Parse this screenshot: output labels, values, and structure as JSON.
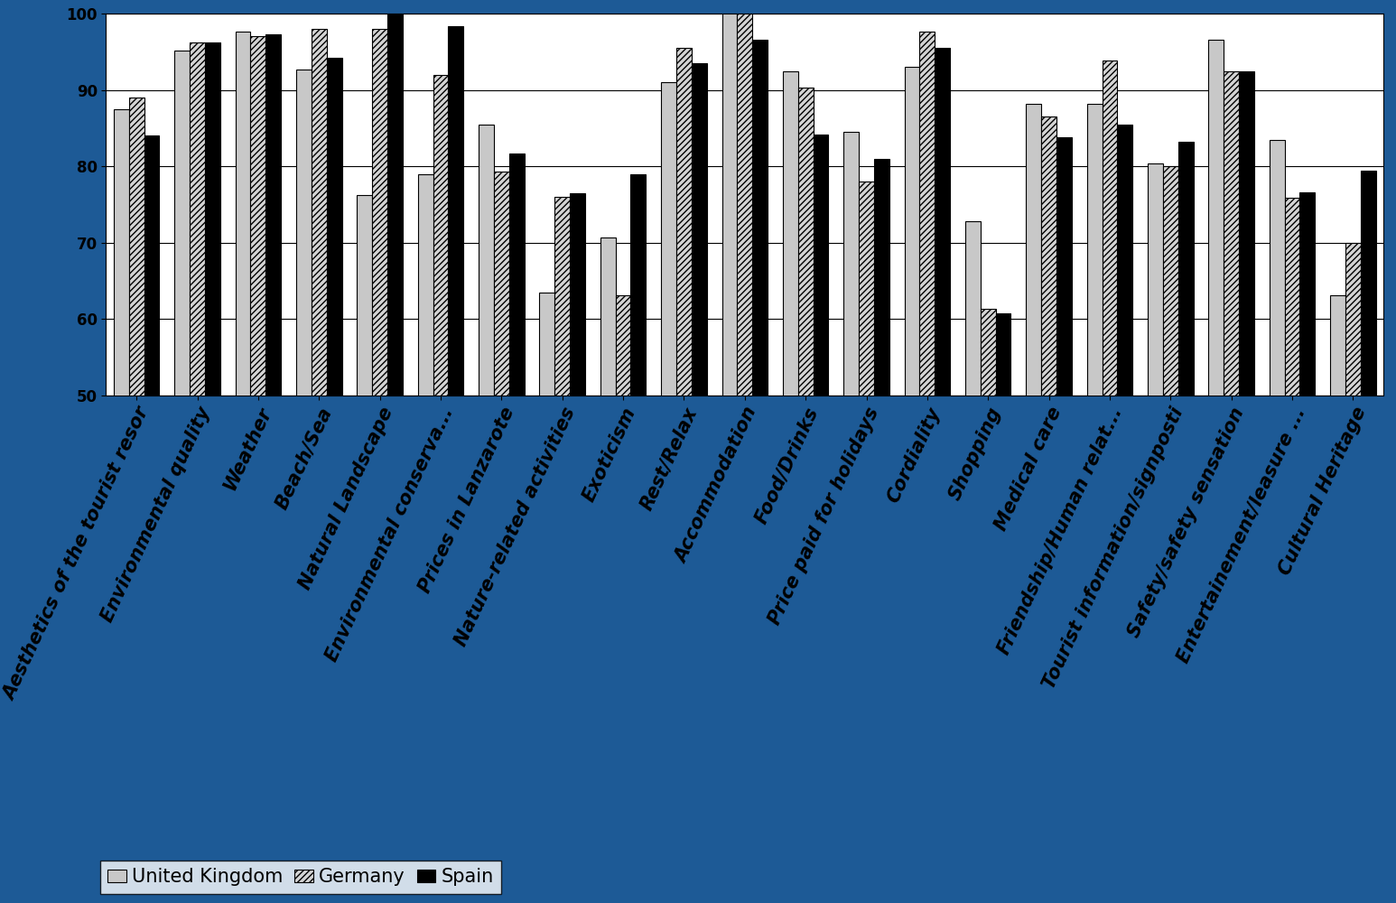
{
  "chart_data": {
    "type": "bar",
    "categories": [
      "Aesthetics of the tourist resor",
      "Environmental quality",
      "Weather",
      "Beach/Sea",
      "Natural Landscape",
      "Environmental conserva...",
      "Prices in Lanzarote",
      "Nature-related activities",
      "Exoticism",
      "Rest/Relax",
      "Accommodation",
      "Food/Drinks",
      "Price paid for holidays",
      "Cordiality",
      "Shopping",
      "Medical care",
      "Friendship/Human relat...",
      "Tourist information/signposti",
      "Safety/safety sensation",
      "Entertainement/leasure ...",
      "Cultural Heritage"
    ],
    "series": [
      {
        "name": "United Kingdom",
        "color": "#c8c8c8",
        "values": [
          87.5,
          95.2,
          97.6,
          92.7,
          76.2,
          79,
          85.5,
          63.5,
          70.7,
          91,
          100,
          92.4,
          84.5,
          93,
          72.8,
          88.2,
          88.2,
          80.4,
          96.6,
          83.5,
          63.1
        ]
      },
      {
        "name": "Germany",
        "color": "#d4d4d4",
        "values": [
          89,
          96.2,
          97,
          98,
          98,
          92,
          79.3,
          76,
          63.1,
          95.5,
          100,
          90.3,
          78,
          97.6,
          61.4,
          86.5,
          93.8,
          80,
          92.4,
          75.9,
          70
        ]
      },
      {
        "name": "Spain",
        "color": "#000000",
        "values": [
          84,
          96.2,
          97.3,
          94.2,
          100,
          98.3,
          81.7,
          76.5,
          79,
          93.5,
          96.6,
          84.2,
          81,
          95.5,
          60.7,
          83.8,
          85.5,
          83.2,
          92.4,
          76.6,
          79.4
        ]
      }
    ],
    "ylim": [
      50,
      100
    ],
    "yticks": [
      50,
      60,
      70,
      80,
      90,
      100
    ],
    "grid": true,
    "legend": "lower left"
  }
}
